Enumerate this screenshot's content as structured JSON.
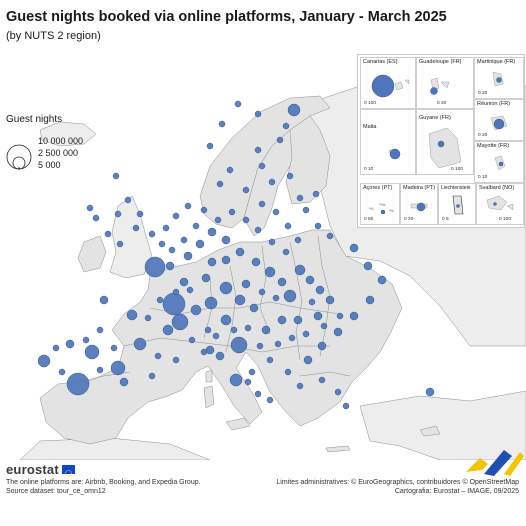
{
  "title": "Guest nights booked via online platforms, January - March 2025",
  "subtitle": "(by NUTS 2 region)",
  "legend": {
    "title": "Guest nights",
    "items": [
      {
        "label": "10 000 000",
        "value": 10000000
      },
      {
        "label": "2 500 000",
        "value": 2500000
      },
      {
        "label": "5 000",
        "value": 5000
      }
    ]
  },
  "colors": {
    "bubble": "#4f76ba",
    "bubble_stroke": "#2f5596",
    "land": "#e3e3e3",
    "land_other": "#ededed",
    "border": "#8c8c8c",
    "sea": "#ffffff"
  },
  "insets": [
    {
      "label": "Canarias (ES)",
      "scale": "0  100"
    },
    {
      "label": "Guadeloupe (FR)",
      "scale": "0  20"
    },
    {
      "label": "Martinique (FR)",
      "scale": "0  20"
    },
    {
      "label": "Réunion (FR)",
      "scale": "0  20"
    },
    {
      "label": "Malta",
      "scale": "0  10"
    },
    {
      "label": "Guyane (FR)",
      "scale": "0  100"
    },
    {
      "label": "Mayotte (FR)",
      "scale": "0  10"
    },
    {
      "label": "Açores (PT)",
      "scale": "0  50"
    },
    {
      "label": "Madeira (PT)",
      "scale": "0  20"
    },
    {
      "label": "Liechtenstein",
      "scale": "0  5"
    },
    {
      "label": "Svalbard (NO)",
      "scale": "0  100"
    }
  ],
  "footer": {
    "logo": "eurostat",
    "note": "The online platforms are: Airbnb, Booking, and Expedia Group.",
    "source": "Source dataset: tour_ce_omn12",
    "admin": "Limites administratives: © EuroGeographics, contribuidores © OpenStreetMap",
    "carto": "Cartografia: Eurostat – IMAGE, 09/2025"
  }
}
